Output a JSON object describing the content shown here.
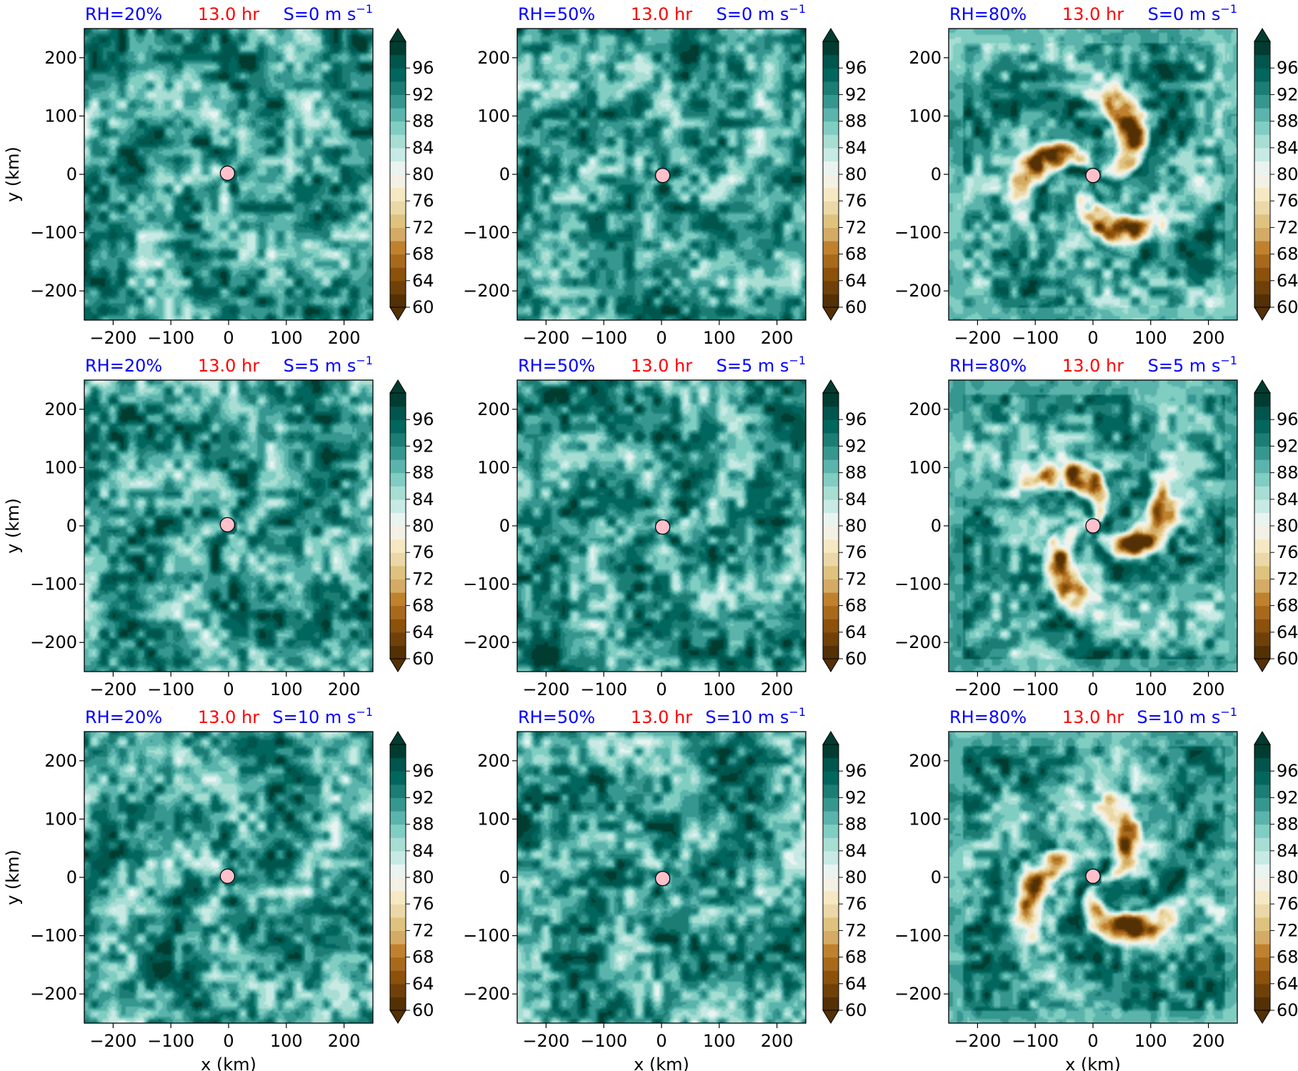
{
  "figure": {
    "colors": {
      "rh_text": "#0000ff",
      "time_text": "#ff0000",
      "shear_text": "#0000ff",
      "center_marker": "#ffc0cb",
      "frame": "#000000"
    }
  },
  "colorbar": {
    "levels": [
      60,
      62,
      64,
      66,
      68,
      70,
      72,
      74,
      76,
      78,
      80,
      82,
      84,
      86,
      88,
      90,
      92,
      94,
      96,
      98
    ],
    "tick_labels": [
      "60",
      "64",
      "68",
      "72",
      "76",
      "80",
      "84",
      "88",
      "92",
      "96"
    ],
    "colors": [
      "#543005",
      "#6f4109",
      "#8c510a",
      "#a8691c",
      "#bf812d",
      "#d4ab65",
      "#dfc27d",
      "#ead8a8",
      "#f6e8c3",
      "#f5f0e4",
      "#e9f4f1",
      "#c7eae5",
      "#a8ddd4",
      "#80cdc1",
      "#5ab4ac",
      "#35978f",
      "#1b7d74",
      "#01665e",
      "#00564d",
      "#003c30"
    ],
    "extend": "both"
  },
  "chart_data": [
    {
      "type": "heatmap",
      "rh": "RH=20%",
      "time": "13.0 hr",
      "shear_prefix": "S=0 m s",
      "shear_exp": "−1",
      "xlabel": "",
      "ylabel": "y (km)",
      "xlim": [
        -250,
        250
      ],
      "ylim": [
        -250,
        250
      ],
      "xticks": [
        "−200",
        "−100",
        "0",
        "100",
        "200"
      ],
      "yticks": [
        "200",
        "100",
        "0",
        "−100",
        "−200"
      ],
      "dry_core": 0.0,
      "center": [
        -2,
        2
      ]
    },
    {
      "type": "heatmap",
      "rh": "RH=50%",
      "time": "13.0 hr",
      "shear_prefix": "S=0 m s",
      "shear_exp": "−1",
      "xlabel": "",
      "ylabel": "",
      "xlim": [
        -250,
        250
      ],
      "ylim": [
        -250,
        250
      ],
      "xticks": [
        "−200",
        "−100",
        "0",
        "100",
        "200"
      ],
      "yticks": [
        "200",
        "100",
        "0",
        "−100",
        "−200"
      ],
      "dry_core": 0.0,
      "center": [
        2,
        -2
      ]
    },
    {
      "type": "heatmap",
      "rh": "RH=80%",
      "time": "13.0 hr",
      "shear_prefix": "S=0 m s",
      "shear_exp": "−1",
      "xlabel": "",
      "ylabel": "",
      "xlim": [
        -250,
        250
      ],
      "ylim": [
        -250,
        250
      ],
      "xticks": [
        "−200",
        "−100",
        "0",
        "100",
        "200"
      ],
      "yticks": [
        "200",
        "100",
        "0",
        "−100",
        "−200"
      ],
      "dry_core": 1.0,
      "center": [
        0,
        -2
      ]
    },
    {
      "type": "heatmap",
      "rh": "RH=20%",
      "time": "13.0 hr",
      "shear_prefix": "S=5 m s",
      "shear_exp": "−1",
      "xlabel": "",
      "ylabel": "y (km)",
      "xlim": [
        -250,
        250
      ],
      "ylim": [
        -250,
        250
      ],
      "xticks": [
        "−200",
        "−100",
        "0",
        "100",
        "200"
      ],
      "yticks": [
        "200",
        "100",
        "0",
        "−100",
        "−200"
      ],
      "dry_core": 0.0,
      "center": [
        -2,
        2
      ]
    },
    {
      "type": "heatmap",
      "rh": "RH=50%",
      "time": "13.0 hr",
      "shear_prefix": "S=5 m s",
      "shear_exp": "−1",
      "xlabel": "",
      "ylabel": "",
      "xlim": [
        -250,
        250
      ],
      "ylim": [
        -250,
        250
      ],
      "xticks": [
        "−200",
        "−100",
        "0",
        "100",
        "200"
      ],
      "yticks": [
        "200",
        "100",
        "0",
        "−100",
        "−200"
      ],
      "dry_core": 0.0,
      "center": [
        2,
        -2
      ]
    },
    {
      "type": "heatmap",
      "rh": "RH=80%",
      "time": "13.0 hr",
      "shear_prefix": "S=5 m s",
      "shear_exp": "−1",
      "xlabel": "",
      "ylabel": "",
      "xlim": [
        -250,
        250
      ],
      "ylim": [
        -250,
        250
      ],
      "xticks": [
        "−200",
        "−100",
        "0",
        "100",
        "200"
      ],
      "yticks": [
        "200",
        "100",
        "0",
        "−100",
        "−200"
      ],
      "dry_core": 1.0,
      "center": [
        0,
        0
      ]
    },
    {
      "type": "heatmap",
      "rh": "RH=20%",
      "time": "13.0 hr",
      "shear_prefix": "S=10 m s",
      "shear_exp": "−1",
      "xlabel": "x (km)",
      "ylabel": "y (km)",
      "xlim": [
        -250,
        250
      ],
      "ylim": [
        -250,
        250
      ],
      "xticks": [
        "−200",
        "−100",
        "0",
        "100",
        "200"
      ],
      "yticks": [
        "200",
        "100",
        "0",
        "−100",
        "−200"
      ],
      "dry_core": 0.0,
      "center": [
        -2,
        2
      ]
    },
    {
      "type": "heatmap",
      "rh": "RH=50%",
      "time": "13.0 hr",
      "shear_prefix": "S=10 m s",
      "shear_exp": "−1",
      "xlabel": "x (km)",
      "ylabel": "",
      "xlim": [
        -250,
        250
      ],
      "ylim": [
        -250,
        250
      ],
      "xticks": [
        "−200",
        "−100",
        "0",
        "100",
        "200"
      ],
      "yticks": [
        "200",
        "100",
        "0",
        "−100",
        "−200"
      ],
      "dry_core": 0.0,
      "center": [
        2,
        -2
      ]
    },
    {
      "type": "heatmap",
      "rh": "RH=80%",
      "time": "13.0 hr",
      "shear_prefix": "S=10 m s",
      "shear_exp": "−1",
      "xlabel": "x (km)",
      "ylabel": "",
      "xlim": [
        -250,
        250
      ],
      "ylim": [
        -250,
        250
      ],
      "xticks": [
        "−200",
        "−100",
        "0",
        "100",
        "200"
      ],
      "yticks": [
        "200",
        "100",
        "0",
        "−100",
        "−200"
      ],
      "dry_core": 1.0,
      "center": [
        0,
        2
      ]
    }
  ]
}
